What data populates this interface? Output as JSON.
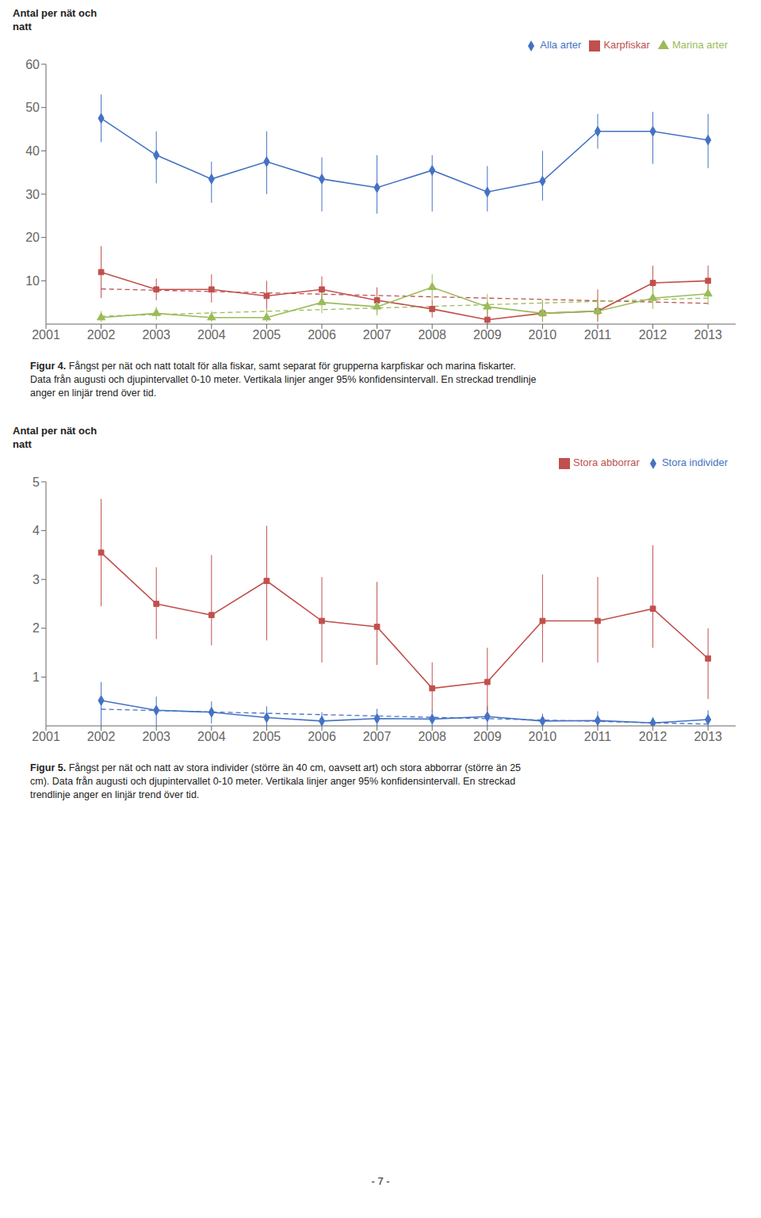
{
  "chart_data": [
    {
      "type": "line",
      "y_label": "Antal per nät och\nnatt",
      "x": [
        2002,
        2003,
        2004,
        2005,
        2006,
        2007,
        2008,
        2009,
        2010,
        2011,
        2012,
        2013
      ],
      "xlim": [
        2001,
        2013.5
      ],
      "xticks": [
        2001,
        2002,
        2003,
        2004,
        2005,
        2006,
        2007,
        2008,
        2009,
        2010,
        2011,
        2012,
        2013
      ],
      "ylim": [
        0,
        60
      ],
      "yticks": [
        10,
        20,
        30,
        40,
        50,
        60
      ],
      "grid": false,
      "legend": "upper right",
      "series": [
        {
          "name": "Alla arter",
          "color": "#4472C4",
          "marker": "diamond",
          "values": [
            47.5,
            39.0,
            33.5,
            37.5,
            33.5,
            31.5,
            35.5,
            30.5,
            33.0,
            44.5,
            44.5,
            42.5
          ],
          "ci_low": [
            42.0,
            32.5,
            28.0,
            30.0,
            26.0,
            25.5,
            26.0,
            26.0,
            28.5,
            40.5,
            37.0,
            36.0
          ],
          "ci_high": [
            53.0,
            44.5,
            37.5,
            44.5,
            38.5,
            39.0,
            39.0,
            36.5,
            40.0,
            48.5,
            49.0,
            48.5
          ]
        },
        {
          "name": "Karpfiskar",
          "color": "#C0504D",
          "marker": "square",
          "values": [
            12.0,
            8.0,
            8.0,
            6.5,
            8.0,
            5.5,
            3.5,
            1.0,
            2.5,
            3.0,
            9.5,
            10.0
          ],
          "ci_low": [
            6.0,
            5.5,
            5.0,
            3.5,
            5.0,
            2.5,
            1.5,
            0.0,
            0.5,
            0.5,
            5.5,
            6.5
          ],
          "ci_high": [
            18.0,
            10.5,
            11.5,
            10.0,
            11.0,
            8.5,
            5.5,
            3.5,
            5.5,
            8.0,
            13.5,
            13.5
          ],
          "trend": [
            8.12179,
            7.81935,
            7.5169,
            7.21445,
            6.912,
            6.60956,
            6.30711,
            6.00466,
            5.70221,
            5.39977,
            5.09732,
            4.79487
          ]
        },
        {
          "name": "Marina arter",
          "color": "#9BBB59",
          "marker": "triangle",
          "values": [
            1.5,
            2.5,
            1.5,
            1.5,
            5.0,
            4.0,
            8.5,
            4.0,
            2.5,
            3.0,
            6.0,
            7.0
          ],
          "ci_low": [
            0.5,
            1.0,
            0.5,
            0.5,
            2.5,
            2.0,
            5.5,
            1.5,
            0.5,
            1.0,
            3.5,
            4.5
          ],
          "ci_high": [
            3.0,
            4.0,
            3.0,
            3.5,
            7.5,
            6.5,
            11.5,
            7.0,
            5.5,
            6.0,
            8.5,
            9.5
          ],
          "trend": [
            1.82051,
            2.20163,
            2.58275,
            2.96387,
            3.34499,
            3.72611,
            4.10723,
            4.48834,
            4.86946,
            5.25058,
            5.6317,
            6.01282
          ]
        }
      ],
      "caption": {
        "label": "Figur 4.",
        "text": " Fångst per nät och natt totalt för alla fiskar, samt separat för grupperna karpfiskar och marina fiskarter.\nData från augusti och djupintervallet 0-10 meter. Vertikala linjer anger 95% konfidensintervall. En streckad trendlinje\nanger en linjär trend över tid."
      }
    },
    {
      "type": "line",
      "y_label": "Antal per nät och\nnatt",
      "x": [
        2002,
        2003,
        2004,
        2005,
        2006,
        2007,
        2008,
        2009,
        2010,
        2011,
        2012,
        2013
      ],
      "xlim": [
        2001,
        2013.5
      ],
      "xticks": [
        2001,
        2002,
        2003,
        2004,
        2005,
        2006,
        2007,
        2008,
        2009,
        2010,
        2011,
        2012,
        2013
      ],
      "ylim": [
        0,
        5
      ],
      "yticks": [
        1,
        2,
        3,
        4,
        5
      ],
      "grid": false,
      "legend": "upper right",
      "series": [
        {
          "name": "Stora individer",
          "color": "#4472C4",
          "marker": "diamond",
          "values": [
            0.52,
            0.32,
            0.28,
            0.17,
            0.1,
            0.15,
            0.14,
            0.19,
            0.1,
            0.11,
            0.06,
            0.13
          ],
          "ci_low": [
            0.0,
            0.0,
            0.05,
            0.0,
            0.0,
            0.0,
            0.0,
            0.0,
            0.0,
            0.0,
            0.0,
            0.0
          ],
          "ci_high": [
            0.9,
            0.6,
            0.5,
            0.4,
            0.28,
            0.35,
            0.32,
            0.4,
            0.25,
            0.3,
            0.18,
            0.32
          ],
          "trend": [
            0.34128,
            0.31362,
            0.28597,
            0.25831,
            0.23065,
            0.20299,
            0.17534,
            0.14768,
            0.12002,
            0.09236,
            0.06471,
            0.03705
          ]
        },
        {
          "name": "Stora abborrar",
          "color": "#C0504D",
          "marker": "square",
          "values": [
            3.55,
            2.5,
            2.27,
            2.97,
            2.15,
            2.03,
            0.77,
            0.9,
            2.15,
            2.15,
            2.4,
            1.38
          ],
          "ci_low": [
            2.45,
            1.78,
            1.65,
            1.75,
            1.3,
            1.25,
            0.3,
            0.3,
            1.3,
            1.3,
            1.6,
            0.55
          ],
          "ci_high": [
            4.65,
            3.25,
            3.5,
            4.1,
            3.05,
            2.95,
            1.3,
            1.6,
            3.1,
            3.05,
            3.7,
            2.0
          ]
        }
      ],
      "caption": {
        "label": "Figur 5.",
        "text": " Fångst per nät och natt av stora individer (större än 40 cm, oavsett art) och stora abborrar (större än 25\ncm). Data från augusti och djupintervallet 0-10 meter. Vertikala linjer anger 95% konfidensintervall. En streckad\ntrendlinje anger en linjär trend över tid."
      }
    }
  ],
  "page_number": "- 7 -"
}
